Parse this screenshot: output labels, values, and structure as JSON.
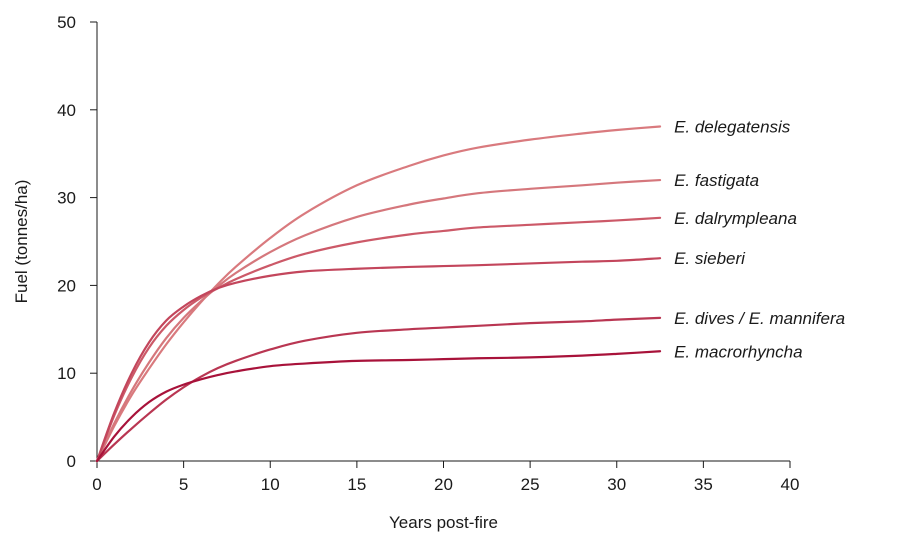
{
  "chart_data": {
    "type": "line",
    "title": "",
    "xlabel": "Years post-fire",
    "ylabel": "Fuel (tonnes/ha)",
    "xlim": [
      0,
      40
    ],
    "ylim": [
      0,
      50
    ],
    "xticks": [
      0,
      5,
      10,
      15,
      20,
      25,
      30,
      35,
      40
    ],
    "yticks": [
      0,
      10,
      20,
      30,
      40,
      50
    ],
    "grid": false,
    "legend": "inline-right",
    "x": [
      0,
      1,
      2,
      3,
      4,
      5,
      6,
      7,
      8,
      10,
      12,
      15,
      18,
      20,
      22,
      25,
      28,
      30,
      32.5
    ],
    "series": [
      {
        "name": "E. delegatensis",
        "color": "#d97a7e",
        "values": [
          0,
          4.0,
          7.5,
          10.5,
          13.3,
          15.8,
          18.1,
          20.2,
          22.1,
          25.4,
          28.2,
          31.4,
          33.6,
          34.8,
          35.7,
          36.6,
          37.3,
          37.7,
          38.1
        ]
      },
      {
        "name": "E. fastigata",
        "color": "#d5777c",
        "values": [
          0,
          4.3,
          8.0,
          11.2,
          14.0,
          16.3,
          18.2,
          19.9,
          21.4,
          23.8,
          25.7,
          27.8,
          29.2,
          29.9,
          30.5,
          31.0,
          31.4,
          31.7,
          32.0
        ]
      },
      {
        "name": "E. dalrympleana",
        "color": "#cc5968",
        "values": [
          0,
          5.2,
          9.5,
          12.9,
          15.4,
          17.2,
          18.6,
          19.7,
          20.7,
          22.3,
          23.6,
          24.9,
          25.8,
          26.2,
          26.6,
          26.9,
          27.2,
          27.4,
          27.7
        ]
      },
      {
        "name": "E. sieberi",
        "color": "#c3465c",
        "values": [
          0,
          5.5,
          10.0,
          13.5,
          16.0,
          17.6,
          18.8,
          19.7,
          20.3,
          21.1,
          21.6,
          21.9,
          22.1,
          22.2,
          22.3,
          22.5,
          22.7,
          22.8,
          23.1
        ]
      },
      {
        "name": "E. dives / E. mannifera",
        "color": "#b93652",
        "values": [
          0,
          1.9,
          3.7,
          5.4,
          7.0,
          8.4,
          9.6,
          10.6,
          11.4,
          12.7,
          13.7,
          14.6,
          15.0,
          15.2,
          15.4,
          15.7,
          15.9,
          16.1,
          16.3
        ]
      },
      {
        "name": "E. macrorhyncha",
        "color": "#a8123a",
        "values": [
          0,
          2.8,
          5.0,
          6.7,
          7.9,
          8.7,
          9.3,
          9.8,
          10.2,
          10.8,
          11.1,
          11.4,
          11.5,
          11.6,
          11.7,
          11.8,
          12.0,
          12.2,
          12.5
        ]
      }
    ]
  }
}
